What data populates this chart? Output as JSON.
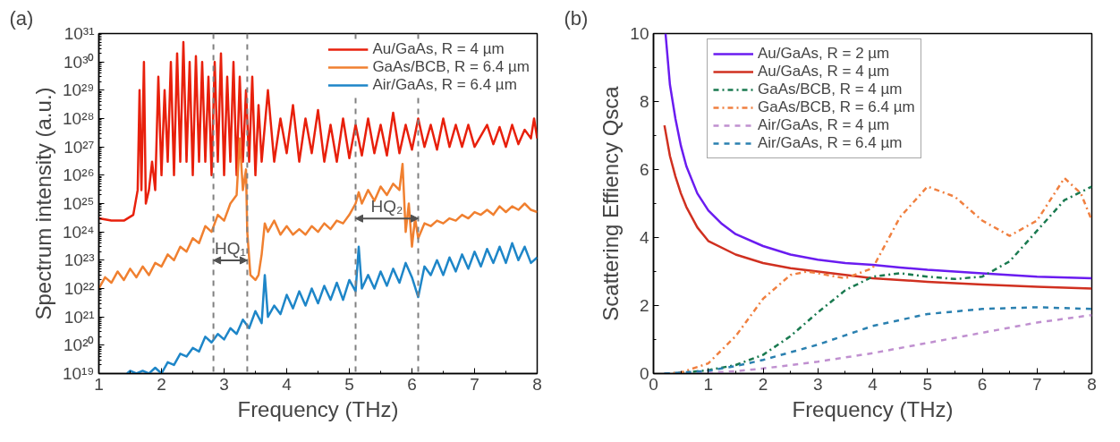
{
  "chart_data": [
    {
      "type": "line",
      "title": "(a)",
      "xlabel": "Frequency (THz)",
      "ylabel": "Spectrum intensity (a.u.)",
      "log": "y",
      "grid": false,
      "legend": "top right",
      "xlim": [
        1,
        8
      ],
      "xticks": [
        1,
        2,
        3,
        4,
        5,
        6,
        7,
        8
      ],
      "ylim": [
        1e+19,
        1e+31
      ],
      "yticks": [
        {
          "value": 1e+19,
          "label": "10¹⁹"
        },
        {
          "value": 1e+20,
          "label": "10²⁰"
        },
        {
          "value": 1e+21,
          "label": "10²¹"
        },
        {
          "value": 1e+22,
          "label": "10²²"
        },
        {
          "value": 1e+23,
          "label": "10²³"
        },
        {
          "value": 1e+24,
          "label": "10²⁴"
        },
        {
          "value": 1e+25,
          "label": "10²⁵"
        },
        {
          "value": 1e+26,
          "label": "10²⁶"
        },
        {
          "value": 1e+27,
          "label": "10²⁷"
        },
        {
          "value": 1e+28,
          "label": "10²⁸"
        },
        {
          "value": 1e+29,
          "label": "10²⁹"
        },
        {
          "value": 1e+30,
          "label": "10³⁰"
        },
        {
          "value": 1e+31,
          "label": "10³¹"
        }
      ],
      "series": [
        {
          "name": "Au/GaAs, R = 4 µm",
          "color": "#e8200c",
          "x": [
            1.0,
            1.2,
            1.4,
            1.55,
            1.62,
            1.65,
            1.68,
            1.72,
            1.75,
            1.8,
            1.85,
            1.9,
            1.95,
            2.0,
            2.05,
            2.1,
            2.15,
            2.2,
            2.25,
            2.3,
            2.35,
            2.4,
            2.45,
            2.5,
            2.55,
            2.6,
            2.65,
            2.7,
            2.75,
            2.8,
            2.85,
            2.9,
            2.95,
            3.0,
            3.05,
            3.1,
            3.15,
            3.2,
            3.25,
            3.3,
            3.35,
            3.4,
            3.45,
            3.5,
            3.55,
            3.6,
            3.7,
            3.8,
            3.9,
            4.0,
            4.1,
            4.2,
            4.3,
            4.4,
            4.5,
            4.6,
            4.7,
            4.8,
            4.9,
            5.0,
            5.1,
            5.2,
            5.3,
            5.4,
            5.5,
            5.6,
            5.7,
            5.8,
            5.9,
            6.0,
            6.1,
            6.2,
            6.3,
            6.4,
            6.5,
            6.6,
            6.7,
            6.8,
            6.9,
            7.0,
            7.2,
            7.3,
            7.4,
            7.5,
            7.6,
            7.7,
            7.8,
            7.9,
            7.95,
            8.0
          ],
          "values": [
            3e+24,
            2.5e+24,
            2.5e+24,
            4e+24,
            3e+25,
            1e+29,
            3e+25,
            1e+30,
            1e+25,
            3e+25,
            3e+26,
            3e+25,
            3e+29,
            1e+26,
            1e+29,
            3e+26,
            1e+30,
            1e+26,
            2e+30,
            3e+26,
            5e+30,
            3e+26,
            1e+30,
            1e+26,
            1.6e+30,
            3e+26,
            1e+30,
            3e+26,
            3e+29,
            1e+26,
            1e+30,
            3e+26,
            2e+30,
            1e+26,
            3e+29,
            3e+26,
            1e+30,
            1e+26,
            3e+29,
            3e+26,
            1e+29,
            3e+26,
            3e+29,
            1e+26,
            3e+28,
            3e+26,
            1e+29,
            3e+26,
            1e+28,
            6e+26,
            3e+28,
            3e+26,
            1e+28,
            6e+26,
            2e+28,
            3e+26,
            6e+27,
            3e+26,
            1e+28,
            4e+26,
            6e+27,
            5e+26,
            1e+28,
            6e+26,
            6e+27,
            5e+26,
            1.6e+28,
            6e+26,
            6e+27,
            8e+26,
            1e+28,
            1e+27,
            6e+27,
            8e+26,
            1e+28,
            1e+27,
            6e+27,
            1e+27,
            6e+27,
            1e+27,
            6e+27,
            1.25e+27,
            5e+27,
            1e+27,
            6e+27,
            1.25e+27,
            4e+27,
            2e+27,
            1e+28,
            2e+27
          ]
        },
        {
          "name": "GaAs/BCB, R = 6.4 µm",
          "color": "#f08030",
          "x": [
            1.0,
            1.1,
            1.2,
            1.3,
            1.4,
            1.5,
            1.6,
            1.7,
            1.8,
            1.9,
            2.0,
            2.1,
            2.2,
            2.3,
            2.4,
            2.5,
            2.6,
            2.7,
            2.8,
            2.9,
            3.0,
            3.1,
            3.2,
            3.25,
            3.3,
            3.35,
            3.37,
            3.42,
            3.5,
            3.55,
            3.6,
            3.65,
            3.7,
            3.8,
            3.9,
            4.0,
            4.1,
            4.2,
            4.3,
            4.4,
            4.5,
            4.6,
            4.7,
            4.8,
            4.9,
            5.0,
            5.1,
            5.15,
            5.2,
            5.3,
            5.4,
            5.5,
            5.6,
            5.7,
            5.8,
            5.85,
            5.9,
            5.95,
            6.0,
            6.05,
            6.1,
            6.2,
            6.3,
            6.4,
            6.5,
            6.6,
            6.7,
            6.8,
            6.9,
            7.0,
            7.1,
            7.2,
            7.3,
            7.4,
            7.5,
            7.6,
            7.7,
            7.8,
            7.9,
            8.0
          ],
          "values": [
            1e+22,
            2.5e+22,
            1.6e+22,
            4e+22,
            2e+22,
            5e+22,
            2.5e+22,
            6e+22,
            3e+22,
            8e+22,
            6e+22,
            1.6e+23,
            1e+23,
            3e+23,
            2e+23,
            6e+23,
            4e+23,
            1.6e+24,
            1e+24,
            4e+24,
            2.5e+24,
            1e+25,
            2e+25,
            2e+27,
            3e+25,
            1.6e+26,
            1e+24,
            3e+22,
            2e+22,
            3e+22,
            1.6e+23,
            2e+24,
            1e+24,
            2.5e+24,
            8e+23,
            1.6e+24,
            8e+23,
            1.25e+24,
            8e+23,
            1.6e+24,
            1e+24,
            2e+24,
            1.25e+24,
            2.5e+24,
            2e+24,
            4e+24,
            1e+25,
            2.5e+25,
            1e+25,
            3e+25,
            1.25e+25,
            4e+25,
            2e+25,
            5e+25,
            3e+25,
            2.5e+26,
            1e+24,
            1e+25,
            3e+23,
            3e+24,
            6e+23,
            2e+24,
            1.6e+24,
            2.5e+24,
            2e+24,
            3e+24,
            2.5e+24,
            4e+24,
            3e+24,
            5e+24,
            4e+24,
            6e+24,
            4e+24,
            8e+24,
            5e+24,
            8e+24,
            6e+24,
            1e+25,
            6e+24,
            5e+24
          ]
        },
        {
          "name": "Air/GaAs, R = 6.4 µm",
          "color": "#1e86c8",
          "x": [
            1.45,
            1.5,
            1.6,
            1.7,
            1.8,
            1.9,
            2.0,
            2.1,
            2.2,
            2.3,
            2.4,
            2.5,
            2.6,
            2.7,
            2.8,
            2.9,
            3.0,
            3.1,
            3.2,
            3.3,
            3.4,
            3.5,
            3.6,
            3.65,
            3.7,
            3.8,
            3.9,
            4.0,
            4.1,
            4.2,
            4.3,
            4.4,
            4.5,
            4.6,
            4.7,
            4.8,
            4.9,
            5.0,
            5.1,
            5.15,
            5.2,
            5.3,
            5.4,
            5.5,
            5.6,
            5.7,
            5.8,
            5.9,
            6.0,
            6.1,
            6.2,
            6.3,
            6.4,
            6.5,
            6.6,
            6.7,
            6.8,
            6.9,
            7.0,
            7.1,
            7.2,
            7.3,
            7.4,
            7.5,
            7.6,
            7.7,
            7.8,
            7.9,
            8.0
          ],
          "values": [
            1e+19,
            1.25e+19,
            1e+19,
            1.25e+19,
            1e+19,
            1.6e+19,
            1e+19,
            2.5e+19,
            2e+19,
            5e+19,
            4e+19,
            8e+19,
            6e+19,
            2e+20,
            1.25e+20,
            2.5e+20,
            1.6e+20,
            4e+20,
            2.5e+20,
            8e+20,
            4e+20,
            1.6e+21,
            6e+20,
            3e+22,
            1e+21,
            2.5e+21,
            1.25e+21,
            6e+21,
            2e+21,
            8e+21,
            2.5e+21,
            1e+22,
            3e+21,
            1.25e+22,
            4e+21,
            1.6e+22,
            4e+21,
            2e+22,
            8e+21,
            3e+23,
            1e+22,
            3e+22,
            1e+22,
            4e+22,
            1.25e+22,
            5e+22,
            1.6e+22,
            8e+22,
            2.5e+22,
            5e+21,
            6e+22,
            3e+22,
            1e+23,
            3e+22,
            1.25e+23,
            4e+22,
            1.6e+23,
            5e+22,
            2e+23,
            6e+22,
            2.5e+23,
            8e+22,
            3e+23,
            8e+22,
            4e+23,
            1e+23,
            3e+23,
            8e+22,
            1.25e+23
          ]
        }
      ],
      "ref_lines": [
        {
          "axis": "x",
          "value": 2.83,
          "color": "#808080",
          "line_style": "dashed"
        },
        {
          "axis": "x",
          "value": 3.37,
          "color": "#808080",
          "line_style": "dashed"
        },
        {
          "axis": "x",
          "value": 5.1,
          "color": "#808080",
          "line_style": "dashed"
        },
        {
          "axis": "x",
          "value": 6.1,
          "color": "#808080",
          "line_style": "dashed"
        }
      ],
      "annotations": [
        "HQ₁",
        "HQ₂"
      ]
    },
    {
      "type": "line",
      "title": "(b)",
      "xlabel": "Frequency (THz)",
      "ylabel": "Scattering Effiency Qsca",
      "grid": false,
      "legend": "top left",
      "xlim": [
        0,
        8
      ],
      "xticks": [
        0,
        1,
        2,
        3,
        4,
        5,
        6,
        7,
        8
      ],
      "ylim": [
        0,
        10
      ],
      "yticks": [
        0,
        2,
        4,
        6,
        8,
        10
      ],
      "series": [
        {
          "name": "Au/GaAs, R = 2 µm",
          "color": "#6a1cf0",
          "line_style": "solid",
          "x": [
            0.22,
            0.3,
            0.4,
            0.5,
            0.6,
            0.8,
            1.0,
            1.25,
            1.5,
            2,
            2.5,
            3,
            3.5,
            4,
            4.5,
            5,
            6,
            7,
            8
          ],
          "values": [
            10,
            8.5,
            7.5,
            6.7,
            6.1,
            5.3,
            4.8,
            4.4,
            4.1,
            3.75,
            3.5,
            3.35,
            3.25,
            3.2,
            3.12,
            3.05,
            2.95,
            2.85,
            2.8
          ]
        },
        {
          "name": "Au/GaAs, R = 4 µm",
          "color": "#d03020",
          "line_style": "solid",
          "x": [
            0.2,
            0.3,
            0.4,
            0.5,
            0.6,
            0.8,
            1.0,
            1.5,
            2,
            2.5,
            3,
            4,
            5,
            6,
            7,
            8
          ],
          "values": [
            7.3,
            6.4,
            5.8,
            5.3,
            4.9,
            4.3,
            3.9,
            3.5,
            3.25,
            3.1,
            3.0,
            2.8,
            2.7,
            2.62,
            2.55,
            2.5
          ]
        },
        {
          "name": "GaAs/BCB, R = 4 µm",
          "color": "#1a7a50",
          "line_style": "dashdot",
          "x": [
            0.2,
            0.5,
            1.0,
            1.5,
            2,
            2.5,
            3,
            3.5,
            4,
            4.5,
            5,
            5.5,
            6,
            6.5,
            7,
            7.5,
            8
          ],
          "values": [
            0,
            0.02,
            0.1,
            0.25,
            0.55,
            1.1,
            1.8,
            2.45,
            2.85,
            2.95,
            2.85,
            2.78,
            2.85,
            3.3,
            4.2,
            5.1,
            5.5
          ]
        },
        {
          "name": "GaAs/BCB, R = 6.4 µm",
          "color": "#f08040",
          "line_style": "dashdot",
          "x": [
            0.2,
            0.5,
            1.0,
            1.5,
            2,
            2.5,
            2.8,
            3,
            3.5,
            4,
            4.5,
            5,
            5.5,
            6,
            6.5,
            7,
            7.5,
            7.8,
            8
          ],
          "values": [
            0,
            0.03,
            0.3,
            1.1,
            2.2,
            2.9,
            3.0,
            2.95,
            2.8,
            3.1,
            4.6,
            5.5,
            5.2,
            4.5,
            4.05,
            4.5,
            5.75,
            5.3,
            4.5
          ]
        },
        {
          "name": "Air/GaAs, R = 4 µm",
          "color": "#c090d0",
          "line_style": "dashed",
          "x": [
            0.2,
            1,
            1.5,
            2,
            3,
            4,
            5,
            6,
            7,
            8
          ],
          "values": [
            0,
            0.02,
            0.07,
            0.15,
            0.35,
            0.6,
            0.9,
            1.2,
            1.5,
            1.72
          ]
        },
        {
          "name": "Air/GaAs, R = 6.4 µm",
          "color": "#2a80b0",
          "line_style": "dashed",
          "x": [
            0.2,
            1,
            1.5,
            2,
            3,
            4,
            5,
            6,
            7,
            8
          ],
          "values": [
            0,
            0.08,
            0.22,
            0.4,
            0.85,
            1.4,
            1.75,
            1.9,
            1.95,
            1.9
          ]
        }
      ]
    }
  ]
}
